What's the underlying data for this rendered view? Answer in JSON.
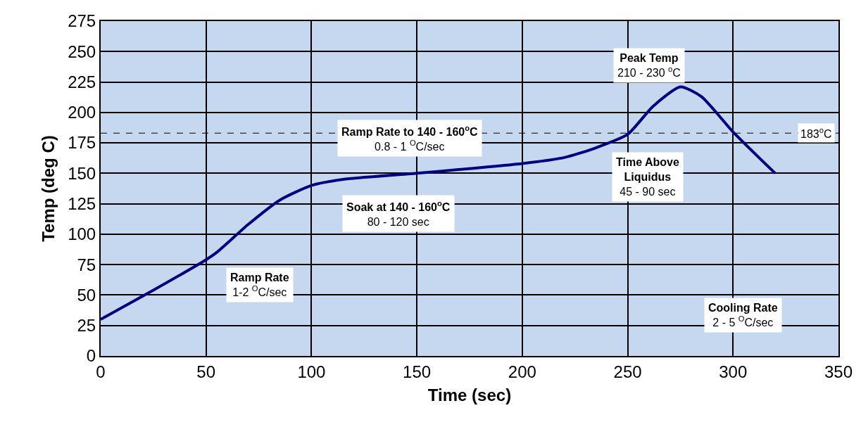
{
  "chart_data": {
    "type": "line",
    "xlabel": "Time (sec)",
    "ylabel": "Temp (deg C)",
    "x": [
      0,
      25,
      50,
      55,
      70,
      85,
      100,
      115,
      150,
      200,
      220,
      235,
      250,
      262,
      275,
      285,
      300,
      320
    ],
    "series": [
      {
        "color": "#000080",
        "values": [
          30,
          54,
          79,
          85,
          108,
          128,
          140,
          145,
          150,
          158,
          163,
          171,
          182,
          205,
          221,
          213,
          184,
          150
        ]
      }
    ],
    "xlim": [
      0,
      350
    ],
    "xticks": [
      0,
      50,
      100,
      150,
      200,
      250,
      300,
      350
    ],
    "ylim": [
      0,
      275
    ],
    "yticks": [
      0,
      25,
      50,
      75,
      100,
      125,
      150,
      175,
      200,
      225,
      250,
      275
    ],
    "grid": true,
    "marker": "none",
    "line_style": "solid",
    "ref_lines": [
      {
        "axis": "y",
        "value": 183,
        "label": "183$^{o}$C",
        "line_style": "dashed",
        "color": "#000000"
      }
    ],
    "annotations": [
      "Ramp Rate\n1-2 $^{O}$C/sec",
      "Ramp Rate to 140 - 160$^{o}$C\n0.8 - 1 $^{O}$C/sec",
      "Soak at 140 - 160$^{o}$C\n80 - 120 sec",
      "Peak Temp\n210 - 230 $^{o}$C",
      "Time Above\nLiquidus\n45 - 90 sec",
      "Cooling Rate\n2 - 5 $^{O}$C/sec"
    ]
  }
}
